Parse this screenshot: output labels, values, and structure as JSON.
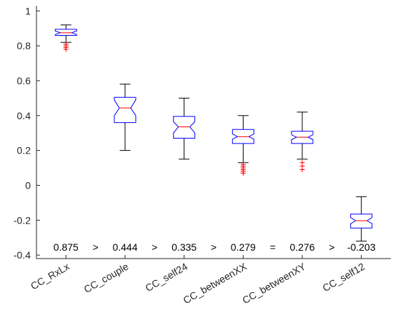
{
  "chart_data": {
    "type": "boxplot",
    "notched": true,
    "categories": [
      "CC_RxLx",
      "CC_couple",
      "CC_self24",
      "CC_betweenXX",
      "CC_betweenXY",
      "CC_self12"
    ],
    "boxes": [
      {
        "name": "CC_RxLx",
        "whisker_low": 0.82,
        "q1": 0.86,
        "notch_low": 0.865,
        "median": 0.875,
        "notch_high": 0.885,
        "q3": 0.895,
        "whisker_high": 0.92,
        "outliers": [
          0.78,
          0.79,
          0.8,
          0.81
        ]
      },
      {
        "name": "CC_couple",
        "whisker_low": 0.2,
        "q1": 0.36,
        "notch_low": 0.4,
        "median": 0.444,
        "notch_high": 0.49,
        "q3": 0.505,
        "whisker_high": 0.58,
        "outliers": []
      },
      {
        "name": "CC_self24",
        "whisker_low": 0.15,
        "q1": 0.27,
        "notch_low": 0.3,
        "median": 0.335,
        "notch_high": 0.365,
        "q3": 0.395,
        "whisker_high": 0.5,
        "outliers": []
      },
      {
        "name": "CC_betweenXX",
        "whisker_low": 0.13,
        "q1": 0.24,
        "notch_low": 0.265,
        "median": 0.279,
        "notch_high": 0.295,
        "q3": 0.32,
        "whisker_high": 0.4,
        "outliers": [
          0.07,
          0.08,
          0.09,
          0.1,
          0.11,
          0.12
        ]
      },
      {
        "name": "CC_betweenXY",
        "whisker_low": 0.15,
        "q1": 0.24,
        "notch_low": 0.262,
        "median": 0.276,
        "notch_high": 0.29,
        "q3": 0.31,
        "whisker_high": 0.42,
        "outliers": [
          0.09,
          0.11,
          0.13
        ]
      },
      {
        "name": "CC_self12",
        "whisker_low": -0.32,
        "q1": -0.245,
        "notch_low": -0.22,
        "median": -0.203,
        "notch_high": -0.185,
        "q3": -0.165,
        "whisker_high": -0.065,
        "outliers": []
      }
    ],
    "yticks": [
      "-0.4",
      "-0.2",
      "0",
      "0.2",
      "0.4",
      "0.6",
      "0.8",
      "1"
    ],
    "ylim": [
      -0.42,
      1.03
    ],
    "grid": false,
    "annotations": [
      "0.875",
      ">",
      "0.444",
      ">",
      "0.335",
      ">",
      "0.279",
      "=",
      "0.276",
      ">",
      "-0.203"
    ],
    "colors": {
      "box": "#0000ff",
      "median": "#ff0000",
      "whisker": "#000000",
      "outlier": "#ff0000",
      "axis": "#262626"
    }
  }
}
